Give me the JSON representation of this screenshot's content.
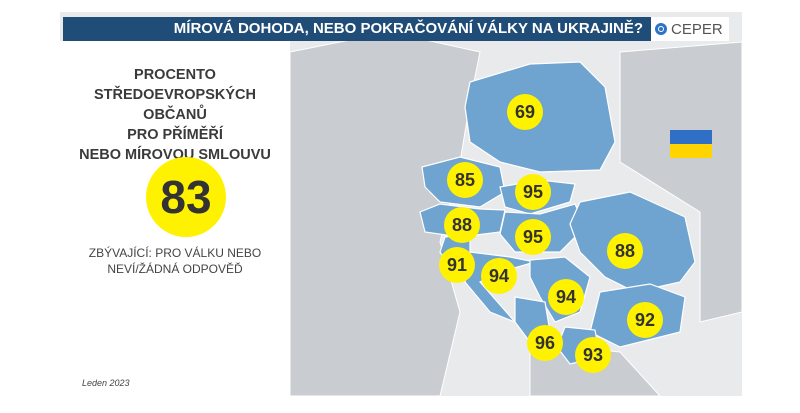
{
  "header": {
    "title": "MÍROVÁ DOHODA, NEBO POKRAČOVÁNÍ VÁLKY NA UKRAJINĚ?",
    "logo_text": "CEPER",
    "logo_icon": "ceper-ring-icon"
  },
  "panel": {
    "title_lines": [
      "PROCENTO",
      "STŘEDOEVROPSKÝCH",
      "OBČANŮ",
      "PRO PŘÍMĚŘÍ",
      "NEBO MÍROVOU SMLOUVU"
    ],
    "overall_value": "83",
    "note_lines": [
      "ZBÝVAJÍCÍ: PRO VÁLKU NEBO",
      "NEVÍ/ŽÁDNÁ ODPOVĚĎ"
    ],
    "date": "Leden 2023"
  },
  "map": {
    "colors": {
      "highlight": "#6fa3d0",
      "land": "#c9ccd0",
      "sea": "#e9eaec",
      "bubble": "#fff200",
      "flag_blue": "#2f6fc6",
      "flag_yellow": "#ffd400"
    },
    "flag": "ukraine-flag-icon",
    "values": [
      "69",
      "85",
      "95",
      "88",
      "95",
      "88",
      "91",
      "94",
      "94",
      "92",
      "96",
      "93"
    ]
  }
}
